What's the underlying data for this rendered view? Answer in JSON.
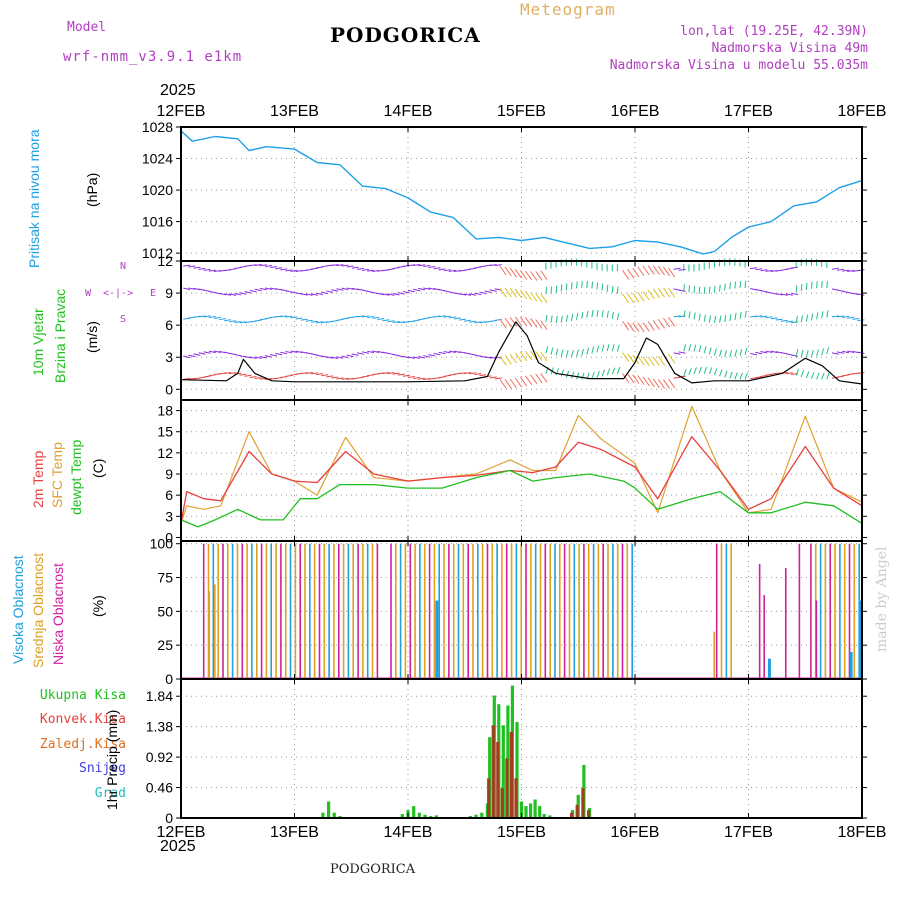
{
  "header": {
    "model_label": "Model",
    "model_name": "wrf-nmm_v3.9.1 e1km",
    "title": "PODGORICA",
    "meteogram_label": "Meteogram",
    "lonlat": "lon,lat (19.25E, 42.39N)",
    "elevation": "Nadmorska Visina 49m",
    "model_elevation": "Nadmorska Visina u modelu 55.035m",
    "year_top": "2025",
    "year_bottom": "2025",
    "footer_title": "PODGORICA",
    "signature": "made by Angel"
  },
  "colors": {
    "pressure": "#1ea0e8",
    "wind_label": "#20c020",
    "wind_arrow_purple": "#8a2be2",
    "temp2m": "#e84040",
    "sfc_temp": "#e0a030",
    "dewpt": "#20c020",
    "cloud_high": "#20a0e0",
    "cloud_mid": "#e0a020",
    "cloud_low": "#d020a0",
    "precip_total": "#20c020",
    "precip_conv": "#d03030",
    "precip_frozen": "#e07020",
    "snow": "#4040e0",
    "grad": "#20c0c0"
  },
  "chart_data": [
    {
      "type": "line",
      "panel": "pressure",
      "title": "",
      "ylabel_words": [
        "Pritisak na nivou mora",
        "(hPa)"
      ],
      "ylim": [
        1011,
        1028
      ],
      "yticks": [
        "1012",
        "1016",
        "1020",
        "1024",
        "1028"
      ],
      "xticks": [
        "12FEB",
        "13FEB",
        "14FEB",
        "15FEB",
        "16FEB",
        "17FEB",
        "18FEB"
      ],
      "xlim_days": [
        12,
        18
      ],
      "series": [
        {
          "color_key": "pressure",
          "x": [
            12.0,
            12.1,
            12.3,
            12.5,
            12.6,
            12.75,
            13.0,
            13.2,
            13.4,
            13.6,
            13.8,
            14.0,
            14.2,
            14.4,
            14.6,
            14.8,
            15.0,
            15.2,
            15.4,
            15.6,
            15.8,
            16.0,
            16.2,
            16.4,
            16.6,
            16.7,
            16.85,
            17.0,
            17.2,
            17.4,
            17.6,
            17.8,
            18.0
          ],
          "y": [
            1027.5,
            1026.2,
            1026.8,
            1026.5,
            1025.0,
            1025.5,
            1025.2,
            1023.5,
            1023.2,
            1020.5,
            1020.2,
            1019.0,
            1017.2,
            1016.5,
            1013.8,
            1014.0,
            1013.6,
            1014.0,
            1013.3,
            1012.6,
            1012.8,
            1013.6,
            1013.4,
            1012.8,
            1011.9,
            1012.2,
            1014.0,
            1015.3,
            1016.0,
            1018.0,
            1018.5,
            1020.3,
            1021.2
          ]
        }
      ]
    },
    {
      "type": "line",
      "panel": "wind",
      "title": "",
      "ylabel_words": [
        "10m Vjetar",
        "Brzina i Pravac",
        "(m/s)"
      ],
      "compass": {
        "n": "N",
        "s": "S",
        "e": "E",
        "w": "W"
      },
      "ylim": [
        -1,
        12
      ],
      "yticks": [
        "0",
        "3",
        "6",
        "9",
        "12"
      ],
      "series": [
        {
          "name": "speed",
          "color": "#000000",
          "x": [
            12.0,
            12.4,
            12.5,
            12.55,
            12.65,
            12.8,
            13.0,
            13.5,
            14.0,
            14.5,
            14.7,
            14.8,
            14.95,
            15.05,
            15.15,
            15.3,
            15.6,
            15.9,
            16.0,
            16.1,
            16.2,
            16.35,
            16.5,
            16.7,
            17.0,
            17.3,
            17.5,
            17.65,
            17.8,
            18.0
          ],
          "y": [
            0.9,
            0.8,
            1.5,
            2.8,
            1.5,
            0.8,
            0.7,
            0.7,
            0.7,
            0.8,
            1.2,
            3.5,
            6.3,
            5.0,
            2.5,
            1.5,
            1.0,
            1.0,
            2.5,
            4.8,
            4.2,
            1.5,
            0.6,
            0.8,
            0.8,
            1.5,
            2.9,
            2.2,
            0.8,
            0.5
          ]
        }
      ]
    },
    {
      "type": "line",
      "panel": "temperature",
      "title": "",
      "ylabel_words": [
        "2m Temp",
        "SFC Temp",
        "dewpt Temp",
        "(C)"
      ],
      "ylim": [
        -0.5,
        19.5
      ],
      "yticks": [
        "0",
        "3",
        "6",
        "9",
        "12",
        "15",
        "18"
      ],
      "series": [
        {
          "name": "2m Temp",
          "color_key": "temp2m",
          "x": [
            12.0,
            12.05,
            12.2,
            12.35,
            12.6,
            12.8,
            13.0,
            13.2,
            13.45,
            13.7,
            14.0,
            14.3,
            14.6,
            14.9,
            15.1,
            15.3,
            15.5,
            15.7,
            16.0,
            16.2,
            16.5,
            16.75,
            17.0,
            17.2,
            17.5,
            17.75,
            18.0
          ],
          "y": [
            2.0,
            6.5,
            5.5,
            5.2,
            12.2,
            9.0,
            8.0,
            7.8,
            12.2,
            9.0,
            8.0,
            8.5,
            8.8,
            9.5,
            9.2,
            10.0,
            13.5,
            12.5,
            10.0,
            5.5,
            14.3,
            9.5,
            4.0,
            5.5,
            12.9,
            7.0,
            4.5
          ]
        },
        {
          "name": "SFC Temp",
          "color_key": "sfc_temp",
          "x": [
            12.0,
            12.05,
            12.2,
            12.35,
            12.6,
            12.8,
            13.0,
            13.2,
            13.45,
            13.7,
            14.0,
            14.3,
            14.6,
            14.9,
            15.1,
            15.3,
            15.5,
            15.7,
            16.0,
            16.2,
            16.5,
            16.75,
            17.0,
            17.2,
            17.5,
            17.75,
            18.0
          ],
          "y": [
            2.0,
            4.5,
            4.0,
            4.5,
            15.0,
            9.0,
            8.0,
            6.0,
            14.2,
            8.5,
            8.0,
            8.5,
            9.0,
            11.0,
            9.5,
            9.5,
            17.3,
            14.0,
            10.5,
            3.5,
            18.6,
            9.5,
            3.5,
            4.0,
            17.2,
            7.0,
            5.0
          ]
        },
        {
          "name": "dewpt Temp",
          "color_key": "dewpt",
          "x": [
            12.0,
            12.15,
            12.3,
            12.5,
            12.7,
            12.9,
            13.05,
            13.2,
            13.4,
            13.7,
            14.0,
            14.3,
            14.6,
            14.9,
            15.1,
            15.3,
            15.6,
            15.9,
            16.0,
            16.2,
            16.5,
            16.75,
            17.0,
            17.2,
            17.5,
            17.75,
            18.0
          ],
          "y": [
            2.5,
            1.5,
            2.5,
            4.0,
            2.5,
            2.5,
            5.5,
            5.5,
            7.5,
            7.5,
            7.0,
            7.0,
            8.5,
            9.5,
            8.0,
            8.5,
            9.0,
            8.0,
            7.0,
            4.0,
            5.5,
            6.5,
            3.5,
            3.5,
            5.0,
            4.5,
            2.0
          ]
        }
      ]
    },
    {
      "type": "bar",
      "panel": "clouds",
      "title": "",
      "ylabel_words": [
        "Visoka Oblacnost",
        "Srednja Oblacnost",
        "Niska Oblacnost",
        "(%)"
      ],
      "ylim": [
        0,
        102
      ],
      "yticks": [
        "0",
        "25",
        "50",
        "75",
        "100"
      ],
      "note": "dense overcast intervals with 100% bars",
      "overcast_intervals_days": [
        [
          12.2,
          13.75
        ],
        [
          13.85,
          15.98
        ],
        [
          16.72,
          16.85
        ],
        [
          17.55,
          18.0
        ]
      ],
      "isolated_bars": [
        {
          "x": 12.25,
          "value": 65,
          "layer": "mid"
        },
        {
          "x": 12.3,
          "value": 70,
          "layer": "mid"
        },
        {
          "x": 14.25,
          "value": 58,
          "layer": "high"
        },
        {
          "x": 16.7,
          "value": 35,
          "layer": "mid"
        },
        {
          "x": 17.1,
          "value": 85,
          "layer": "low"
        },
        {
          "x": 17.14,
          "value": 62,
          "layer": "low"
        },
        {
          "x": 17.18,
          "value": 15,
          "layer": "high"
        },
        {
          "x": 17.33,
          "value": 82,
          "layer": "low"
        },
        {
          "x": 17.45,
          "value": 100,
          "layer": "low"
        },
        {
          "x": 17.6,
          "value": 58,
          "layer": "low"
        },
        {
          "x": 17.9,
          "value": 20,
          "layer": "high"
        },
        {
          "x": 17.98,
          "value": 58,
          "layer": "high"
        }
      ]
    },
    {
      "type": "bar",
      "panel": "precipitation",
      "title": "",
      "ylabel_words": [
        "1hr Precip (mm)"
      ],
      "legend": [
        "Ukupna Kisa",
        "Konvek.Kisa",
        "Zaledj.Kisa",
        "Snijeg",
        "Grad"
      ],
      "ylim": [
        0,
        2.1
      ],
      "yticks": [
        "0",
        "0.46",
        "0.92",
        "1.38",
        "1.84"
      ],
      "xticks": [
        "12FEB",
        "13FEB",
        "14FEB",
        "15FEB",
        "16FEB",
        "17FEB",
        "18FEB"
      ],
      "total": {
        "x": [
          13.25,
          13.3,
          13.35,
          13.4,
          13.95,
          14.0,
          14.05,
          14.1,
          14.15,
          14.2,
          14.25,
          14.55,
          14.6,
          14.65,
          14.7,
          14.72,
          14.76,
          14.8,
          14.84,
          14.88,
          14.92,
          14.96,
          15.0,
          15.04,
          15.08,
          15.12,
          15.16,
          15.2,
          15.25,
          15.45,
          15.5,
          15.55,
          15.6
        ],
        "values": [
          0.08,
          0.25,
          0.08,
          0.03,
          0.06,
          0.12,
          0.18,
          0.08,
          0.05,
          0.03,
          0.04,
          0.03,
          0.05,
          0.08,
          0.22,
          1.22,
          1.85,
          1.72,
          1.4,
          1.7,
          2.0,
          1.45,
          0.25,
          0.18,
          0.22,
          0.28,
          0.18,
          0.06,
          0.04,
          0.12,
          0.35,
          0.8,
          0.15
        ]
      },
      "convective": {
        "x": [
          14.72,
          14.76,
          14.8,
          14.84,
          14.88,
          14.92,
          14.96,
          15.45,
          15.5,
          15.55,
          15.6
        ],
        "values": [
          0.6,
          1.4,
          1.15,
          0.45,
          0.9,
          1.3,
          0.6,
          0.08,
          0.2,
          0.45,
          0.12
        ]
      }
    }
  ]
}
